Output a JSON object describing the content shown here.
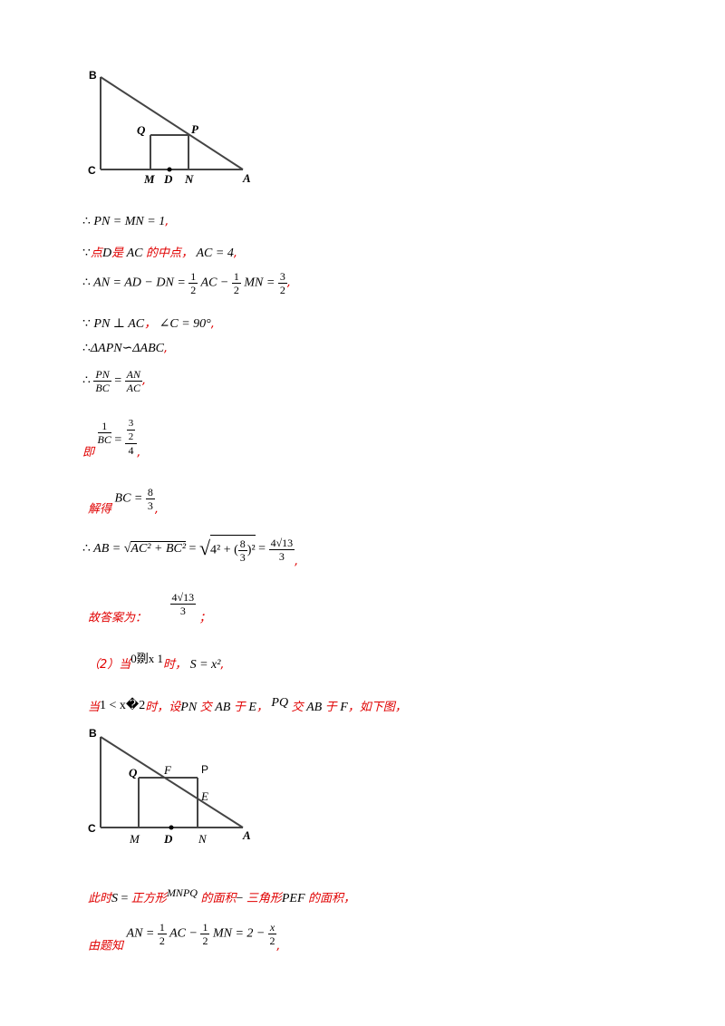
{
  "figure1": {
    "labels": {
      "B": "B",
      "C": "C",
      "Q": "Q",
      "P": "P",
      "M": "M",
      "D": "D",
      "N": "N",
      "A": "A"
    }
  },
  "lines": {
    "l1": {
      "prefix": "∴",
      "expr": "PN = MN = 1",
      "end": ","
    },
    "l2": {
      "prefix": "∵",
      "cn1": "点",
      "d": "D",
      "cn2": "是",
      "ac": "AC",
      "cn3": "的中点，",
      "expr": "AC = 4",
      "end": ","
    },
    "l3": {
      "prefix": "∴",
      "expr1": "AN = AD − DN =",
      "half": "1",
      "two": "2",
      "expr2": "AC −",
      "expr3": "MN =",
      "n3": "3",
      "d2": "2",
      "end": ","
    },
    "l4": {
      "prefix": "∵",
      "expr1": "PN ⊥ AC",
      "sep": "，",
      "expr2": "∠C = 90°",
      "end": ","
    },
    "l5": {
      "prefix": "∴",
      "expr": "ΔAPN∽ΔABC",
      "end": ","
    },
    "l6": {
      "prefix": "∴",
      "pn": "PN",
      "bc": "BC",
      "eq": "=",
      "an": "AN",
      "ac": "AC",
      "end": ","
    },
    "l7": {
      "cn": "即",
      "one": "1",
      "bc": "BC",
      "eq": "=",
      "t": "3",
      "t2": "2",
      "four": "4",
      "end": ","
    },
    "l8": {
      "cn": "解得",
      "expr": "BC =",
      "n": "8",
      "d": "3",
      "end": ","
    },
    "l9": {
      "prefix": "∴",
      "expr1": "AB =",
      "rad1": "AC² + BC²",
      "eq": "=",
      "rad2a": "4² + (",
      "rn": "8",
      "rd": "3",
      "rad2b": ")²",
      "eq2": "=",
      "res_n": "4√13",
      "res_d": "3",
      "end": ","
    },
    "l10": {
      "cn": "故答案为：",
      "n": "4√13",
      "d": "3",
      "end": "；"
    },
    "l11": {
      "cn1": "（2）当",
      "cond": "0剟x  1",
      "cn2": "时，",
      "expr": "S = x²",
      "end": ","
    },
    "l12": {
      "cn1": "当",
      "cond": "1 < x�2",
      "cn2": "时，设",
      "pn": "PN",
      "cn3": "交",
      "ab": "AB",
      "cn4": "于",
      "e": "E",
      "cn5": "，",
      "pq": "PQ",
      "cn6": "交",
      "ab2": "AB",
      "cn7": "于",
      "f": "F",
      "cn8": "，如下图，"
    },
    "l13": {
      "cn1": "此时",
      "s": "S",
      "eq": "=",
      "cn2": "正方形",
      "mnpq": "MNPQ",
      "cn3": "的面积",
      "minus": "−",
      "cn4": "三角形",
      "pef": "PEF",
      "cn5": "的面积，"
    },
    "l14": {
      "cn": "由题知",
      "expr1": "AN =",
      "h1": "1",
      "h2": "2",
      "expr2": "AC −",
      "expr3": "MN = 2 −",
      "xn": "x",
      "xd": "2",
      "end": ","
    }
  },
  "figure2": {
    "labels": {
      "B": "B",
      "C": "C",
      "Q": "Q",
      "F": "F",
      "P": "P",
      "E": "E",
      "M": "M",
      "D": "D",
      "N": "N",
      "A": "A"
    }
  }
}
